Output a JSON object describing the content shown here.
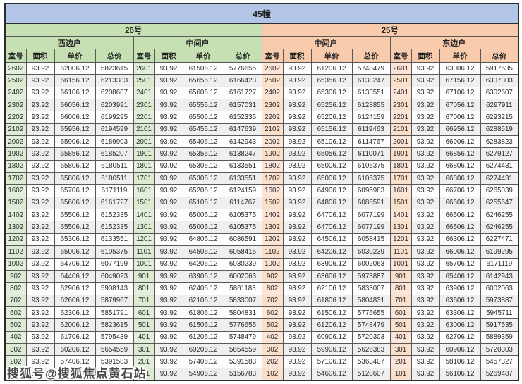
{
  "colors": {
    "title_bg": "#b4c6e7",
    "left_header_bg": "#c6e0b4",
    "right_header_bg": "#f8cbad",
    "left_room_bg": "#e2efda",
    "right_room_bg": "#fce4d6",
    "stripe_bg": "#efefef",
    "border": "#595959"
  },
  "watermark": "搜狐号@搜狐焦点黄石站",
  "chart_data": {
    "type": "table",
    "title": "45幢",
    "sections": [
      {
        "name": "26号",
        "unit_types": [
          {
            "label": "西边户"
          },
          {
            "label": "中间户"
          }
        ]
      },
      {
        "name": "25号",
        "unit_types": [
          {
            "label": "中间户"
          },
          {
            "label": "东边户"
          }
        ]
      }
    ],
    "column_headers": [
      "室号",
      "面积",
      "单价",
      "总价"
    ],
    "rows": [
      [
        "2602",
        "93.92",
        "62006.12",
        "5823615",
        "2601",
        "93.92",
        "61506.12",
        "5776655",
        "2602",
        "93.92",
        "61206.12",
        "5748479",
        "2601",
        "93.92",
        "63006.12",
        "5917535"
      ],
      [
        "2502",
        "93.92",
        "66156.12",
        "6213383",
        "2501",
        "93.92",
        "65656.12",
        "6166423",
        "2502",
        "93.92",
        "65356.12",
        "6138247",
        "2501",
        "93.92",
        "67156.12",
        "6307303"
      ],
      [
        "2402",
        "93.92",
        "66106.12",
        "6208687",
        "2401",
        "93.92",
        "65606.12",
        "6161727",
        "2402",
        "93.92",
        "65306.12",
        "6133551",
        "2401",
        "93.92",
        "67106.12",
        "6302607"
      ],
      [
        "2302",
        "93.92",
        "66056.12",
        "6203991",
        "2301",
        "93.92",
        "65556.12",
        "6157031",
        "2302",
        "93.92",
        "65256.12",
        "6128855",
        "2301",
        "93.92",
        "67056.12",
        "6297911"
      ],
      [
        "2202",
        "93.92",
        "66006.12",
        "6199295",
        "2201",
        "93.92",
        "65506.12",
        "6152335",
        "2202",
        "93.92",
        "65206.12",
        "6124159",
        "2201",
        "93.92",
        "67006.12",
        "6293215"
      ],
      [
        "2102",
        "93.92",
        "65956.12",
        "6194599",
        "2101",
        "93.92",
        "65456.12",
        "6147639",
        "2102",
        "93.92",
        "65156.12",
        "6119463",
        "2101",
        "93.92",
        "66956.12",
        "6288519"
      ],
      [
        "2002",
        "93.92",
        "65906.12",
        "6189903",
        "2001",
        "93.92",
        "65406.12",
        "6142943",
        "2002",
        "93.92",
        "65106.12",
        "6114767",
        "2001",
        "93.92",
        "66906.12",
        "6283823"
      ],
      [
        "1902",
        "93.92",
        "65856.12",
        "6185207",
        "1901",
        "93.92",
        "65356.12",
        "6138247",
        "1902",
        "93.92",
        "65056.12",
        "6110071",
        "1901",
        "93.92",
        "66856.12",
        "6279127"
      ],
      [
        "1802",
        "93.92",
        "65806.12",
        "6180511",
        "1801",
        "93.92",
        "65306.12",
        "6133551",
        "1802",
        "93.92",
        "65006.12",
        "6105375",
        "1801",
        "93.92",
        "66806.12",
        "6274431"
      ],
      [
        "1702",
        "93.92",
        "65806.12",
        "6180511",
        "1701",
        "93.92",
        "65306.12",
        "6133551",
        "1702",
        "93.92",
        "65006.12",
        "6105375",
        "1701",
        "93.92",
        "66806.12",
        "6274431"
      ],
      [
        "1602",
        "93.92",
        "65706.12",
        "6171119",
        "1601",
        "93.92",
        "65206.12",
        "6124159",
        "1602",
        "93.92",
        "64906.12",
        "6095983",
        "1601",
        "93.92",
        "66706.12",
        "6265039"
      ],
      [
        "1502",
        "93.92",
        "65606.12",
        "6161727",
        "1501",
        "93.92",
        "65106.12",
        "6114767",
        "1502",
        "93.92",
        "64806.12",
        "6086591",
        "1501",
        "93.92",
        "66606.12",
        "6255647"
      ],
      [
        "1402",
        "93.92",
        "65506.12",
        "6152335",
        "1401",
        "93.92",
        "65006.12",
        "6105375",
        "1402",
        "93.92",
        "64706.12",
        "6077199",
        "1401",
        "93.92",
        "66506.12",
        "6246255"
      ],
      [
        "1302",
        "93.92",
        "65506.12",
        "6152335",
        "1301",
        "93.92",
        "65006.12",
        "6105375",
        "1302",
        "93.92",
        "64706.12",
        "6077199",
        "1301",
        "93.92",
        "66506.12",
        "6246255"
      ],
      [
        "1202",
        "93.92",
        "65306.12",
        "6133551",
        "1201",
        "93.92",
        "64806.12",
        "6086591",
        "1202",
        "93.92",
        "64506.12",
        "6058415",
        "1201",
        "93.92",
        "66306.12",
        "6227471"
      ],
      [
        "1102",
        "93.92",
        "65006.12",
        "6105375",
        "1101",
        "93.92",
        "64506.12",
        "6058415",
        "1102",
        "93.92",
        "64206.12",
        "6030239",
        "1101",
        "93.92",
        "66006.12",
        "6199295"
      ],
      [
        "1002",
        "93.92",
        "64706.12",
        "6077199",
        "1001",
        "93.92",
        "64206.12",
        "6030239",
        "1002",
        "93.92",
        "63906.12",
        "6002063",
        "1001",
        "93.92",
        "65706.12",
        "6171119"
      ],
      [
        "902",
        "93.92",
        "64406.12",
        "6049023",
        "901",
        "93.92",
        "63906.12",
        "6002063",
        "902",
        "93.92",
        "63606.12",
        "5973887",
        "901",
        "93.92",
        "65406.12",
        "6142943"
      ],
      [
        "802",
        "93.92",
        "62906.12",
        "5908143",
        "801",
        "93.92",
        "62406.12",
        "5861183",
        "802",
        "93.92",
        "62106.12",
        "5833007",
        "801",
        "93.92",
        "63906.12",
        "6002063"
      ],
      [
        "702",
        "93.92",
        "62606.12",
        "5879967",
        "701",
        "93.92",
        "62106.12",
        "5833007",
        "702",
        "93.92",
        "61806.12",
        "5804831",
        "701",
        "93.92",
        "63606.12",
        "5973887"
      ],
      [
        "602",
        "93.92",
        "62306.12",
        "5851791",
        "601",
        "93.92",
        "61806.12",
        "5804831",
        "602",
        "93.92",
        "61506.12",
        "5776655",
        "601",
        "93.92",
        "63306.12",
        "5945711"
      ],
      [
        "502",
        "93.92",
        "62006.12",
        "5823615",
        "501",
        "93.92",
        "61506.12",
        "5776655",
        "502",
        "93.92",
        "61206.12",
        "5748479",
        "501",
        "93.92",
        "63006.12",
        "5917535"
      ],
      [
        "402",
        "93.92",
        "61706.12",
        "5795439",
        "401",
        "93.92",
        "61206.12",
        "5748479",
        "402",
        "93.92",
        "60906.12",
        "5720303",
        "401",
        "93.92",
        "62706.12",
        "5889359"
      ],
      [
        "302",
        "93.92",
        "60206.12",
        "5654559",
        "301",
        "93.92",
        "60206.12",
        "5654559",
        "302",
        "93.92",
        "59906.12",
        "5626383",
        "301",
        "93.92",
        "60906.12",
        "5720303"
      ],
      [
        "202",
        "93.92",
        "57406.12",
        "5391583",
        "201",
        "93.92",
        "57406.12",
        "5391583",
        "202",
        "93.92",
        "57106.12",
        "5363407",
        "201",
        "93.92",
        "58106.12",
        "5457327"
      ],
      [
        "102",
        "93.92",
        "55406.12",
        "5203743",
        "101",
        "93.92",
        "54906.12",
        "5156783",
        "102",
        "93.92",
        "54606.12",
        "5128607",
        "101",
        "93.92",
        "56106.12",
        "5269487"
      ]
    ]
  }
}
